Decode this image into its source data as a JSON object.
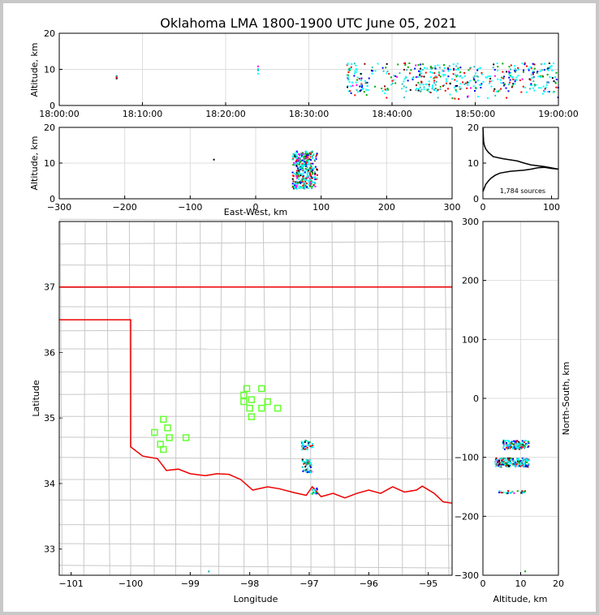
{
  "title": "Oklahoma LMA 1800-1900 UTC June 05, 2021",
  "colors": {
    "axis": "#000000",
    "grid": "#dddddd",
    "county": "#c8c8c8",
    "state": "#ee0000",
    "station": "#66ff33",
    "background": "#ffffff"
  },
  "chart_data": [
    {
      "id": "time-height",
      "type": "scatter",
      "ylabel": "Altitude, km",
      "xlim": [
        0,
        60
      ],
      "ylim": [
        0,
        20
      ],
      "x_ticks": [
        0,
        10,
        20,
        30,
        40,
        50,
        60
      ],
      "x_tick_labels": [
        "18:00:00",
        "18:10:00",
        "18:20:00",
        "18:30:00",
        "18:40:00",
        "18:50:00",
        "19:00:00"
      ],
      "y_ticks": [
        0,
        10,
        20
      ],
      "y_tick_labels": [
        "0",
        "10",
        "20"
      ],
      "description_clusters": [
        {
          "t": 6.8,
          "alt": [
            7.8,
            9
          ]
        },
        {
          "t": 23.8,
          "alt": [
            8.5,
            11
          ]
        },
        {
          "t_range": [
            34.5,
            60
          ],
          "alt": [
            2,
            12
          ]
        }
      ]
    },
    {
      "id": "ew-height",
      "type": "scatter",
      "xlabel": "East-West, km",
      "ylabel": "Altitude, km",
      "xlim": [
        -300,
        300
      ],
      "ylim": [
        0,
        20
      ],
      "x_ticks": [
        -300,
        -200,
        -100,
        0,
        100,
        200,
        300
      ],
      "x_tick_labels": [
        "−300",
        "−200",
        "−100",
        "0",
        "100",
        "200",
        "300"
      ],
      "y_ticks": [
        0,
        10,
        20
      ],
      "y_tick_labels": [
        "0",
        "10",
        "20"
      ],
      "clusters": [
        {
          "x": [
            55,
            95
          ],
          "alt": [
            2,
            14
          ]
        },
        {
          "x": [
            -65,
            -65
          ],
          "alt": [
            11,
            11
          ]
        }
      ]
    },
    {
      "id": "alt-histogram",
      "type": "line",
      "xlim": [
        0,
        110
      ],
      "ylim": [
        0,
        20
      ],
      "x_ticks": [
        0,
        100
      ],
      "x_tick_labels": [
        "0",
        "100"
      ],
      "y_ticks": [
        0,
        10,
        20
      ],
      "y_tick_labels": [
        "0",
        "10",
        "20"
      ],
      "annotation": "1,784 sources",
      "x": [
        0,
        1,
        2,
        4,
        6,
        8,
        12,
        18,
        25,
        40,
        60,
        70,
        75,
        80,
        90,
        100,
        110,
        90,
        70,
        60,
        50,
        30,
        15,
        8,
        4,
        2,
        1,
        0
      ],
      "y": [
        2,
        2.5,
        3,
        4,
        4.5,
        5,
        5.8,
        6.6,
        7.2,
        7.7,
        8,
        8.3,
        8.5,
        8.7,
        8.8,
        8.5,
        8.3,
        9,
        9.5,
        10,
        10.6,
        11.2,
        11.8,
        13,
        14,
        15,
        16,
        20
      ]
    },
    {
      "id": "plan-view",
      "type": "scatter",
      "xlabel": "Longitude",
      "ylabel": "Latitude",
      "xlim": [
        -101.2,
        -94.6
      ],
      "ylim": [
        32.6,
        38
      ],
      "x_ticks": [
        -101,
        -100,
        -99,
        -98,
        -97,
        -96,
        -95
      ],
      "x_tick_labels": [
        "−101",
        "−100",
        "−99",
        "−98",
        "−97",
        "−96",
        "−95"
      ],
      "y_ticks": [
        33,
        34,
        35,
        36,
        37
      ],
      "y_tick_labels": [
        "33",
        "34",
        "35",
        "36",
        "37"
      ],
      "stations": [
        [
          -98.05,
          35.45
        ],
        [
          -98.1,
          35.35
        ],
        [
          -97.97,
          35.28
        ],
        [
          -98.1,
          35.25
        ],
        [
          -97.8,
          35.45
        ],
        [
          -97.7,
          35.25
        ],
        [
          -97.8,
          35.15
        ],
        [
          -98.0,
          35.15
        ],
        [
          -97.97,
          35.02
        ],
        [
          -97.53,
          35.15
        ],
        [
          -99.45,
          34.98
        ],
        [
          -99.38,
          34.85
        ],
        [
          -99.6,
          34.78
        ],
        [
          -99.35,
          34.7
        ],
        [
          -99.07,
          34.7
        ],
        [
          -99.5,
          34.6
        ],
        [
          -99.45,
          34.52
        ]
      ],
      "clusters": [
        {
          "lon": -97.05,
          "lat": 34.6
        },
        {
          "lon": -97.1,
          "lat": 34.25
        },
        {
          "lon": -96.93,
          "lat": 33.9
        },
        {
          "lon": -98.7,
          "lat": 32.65
        }
      ]
    },
    {
      "id": "ns-height",
      "type": "scatter",
      "xlabel": "Altitude, km",
      "ylabel": "North-South, km",
      "xlim": [
        0,
        20
      ],
      "ylim": [
        -300,
        300
      ],
      "x_ticks": [
        0,
        10,
        20
      ],
      "x_tick_labels": [
        "0",
        "10",
        "20"
      ],
      "y_ticks": [
        -300,
        -200,
        -100,
        0,
        100,
        200,
        300
      ],
      "y_tick_labels": [
        "−300",
        "−200",
        "−100",
        "0",
        "100",
        "200",
        "300"
      ],
      "clusters": [
        {
          "alt": [
            5,
            12
          ],
          "ns": [
            -85,
            -70
          ]
        },
        {
          "alt": [
            3,
            12
          ],
          "ns": [
            -115,
            -100
          ]
        },
        {
          "alt": [
            4,
            11
          ],
          "ns": [
            -160,
            -155
          ]
        }
      ]
    }
  ]
}
